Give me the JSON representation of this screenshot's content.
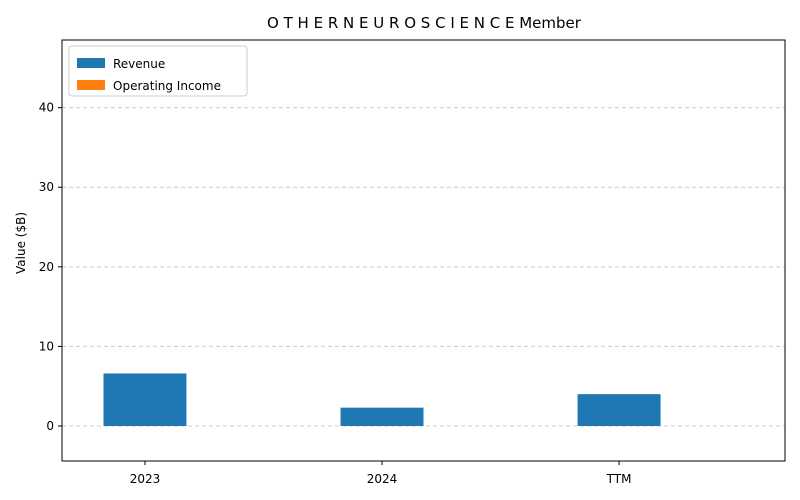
{
  "chart_data": {
    "type": "bar",
    "title": "O T H E R N E U R O S C I E N C E Member",
    "xlabel": "",
    "ylabel": "Value ($B)",
    "categories": [
      "2023",
      "2024",
      "TTM"
    ],
    "series": [
      {
        "name": "Revenue",
        "color": "#1f77b4",
        "values": [
          6.6,
          2.3,
          4.0
        ]
      },
      {
        "name": "Operating Income",
        "color": "#ff7f0e",
        "values": [
          0,
          0,
          0
        ]
      }
    ],
    "ylim": [
      -4.4,
      48.5
    ],
    "yticks": [
      0,
      10,
      20,
      30,
      40
    ],
    "grid": true,
    "legend_position": "top-left"
  }
}
